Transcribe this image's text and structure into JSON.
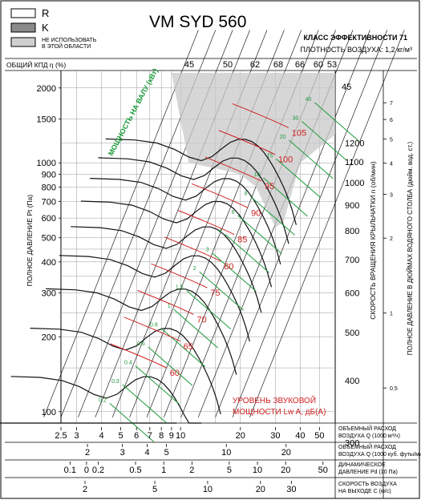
{
  "header": {
    "model": "VM SYD 560",
    "efficiency_class": "КЛАСС ЭФФЕКТИВНОСТИ 71",
    "density": "ПЛОТНОСТЬ ВОЗДУХА: 1,2 кг/м³",
    "overall_efficiency": "ОБЩИЙ КПД η (%)"
  },
  "legend": {
    "items": [
      {
        "swatch": "white",
        "label": "R"
      },
      {
        "swatch": "gray",
        "label": "K"
      },
      {
        "swatch": "lightgray",
        "label": "НЕ ИСПОЛЬЗОВАТЬ"
      },
      {
        "swatch": "none",
        "label": "В ЭТОЙ ОБЛАСТИ"
      }
    ]
  },
  "colors": {
    "green": "#1a9a3a",
    "red": "#d02020",
    "dark": "#111111",
    "shade": "#c8c8c8"
  },
  "chart_data": {
    "type": "line",
    "axes": {
      "left_label": "ПОЛНОЕ ДАВЛЕНИЕ Pt (Па)",
      "left_ticks": [
        "2000",
        "1500",
        "1000",
        "900",
        "800",
        "700",
        "600",
        "500",
        "400",
        "300",
        "200",
        "100"
      ],
      "left_range": [
        100,
        2300
      ],
      "right_speed_label": "СКОРОСТЬ ВРАЩЕНИЯ КРЫЛЬЧАТКИ n (об/мин)",
      "right_speed_ticks": [
        "1200",
        "1100",
        "1000",
        "900",
        "800",
        "700",
        "600",
        "500",
        "400",
        "300"
      ],
      "right_inch_label": "ПОЛНОЕ ДАВЛЕНИЕ В ДЮЙМАХ ВОДЯНОГО СТОЛБА (дюйм. вод. ст.)",
      "right_inch_ticks": [
        "7",
        "6",
        "5",
        "4",
        "3",
        "2",
        "1",
        "0.5"
      ],
      "top_eff_ticks": [
        "45",
        "50",
        "62",
        "68",
        "66",
        "60",
        "53"
      ],
      "right_eff_tick": "45",
      "bottom_axes": [
        {
          "label": "ОБЪЕМНЫЙ РАСХОД ВОЗДУХА Q (1000 м³/ч)",
          "ticks": [
            "2.5",
            "3",
            "4",
            "5",
            "6",
            "7",
            "8",
            "9",
            "10",
            "20",
            "30",
            "40",
            "50"
          ]
        },
        {
          "label": "ОБЪЕМНЫЙ РАСХОД ВОЗДУХА Q (1000 куб. футы/мин)",
          "ticks": [
            "2",
            "3",
            "4",
            "5",
            "10",
            "20"
          ]
        },
        {
          "label": "ДИНАМИЧЕСКОЕ ДАВЛЕНИЕ Pd (10 Па)",
          "ticks": [
            "0.1",
            "0",
            "0.2",
            "0.5",
            "1",
            "2",
            "5",
            "10",
            "20",
            "50"
          ]
        },
        {
          "label": "СКОРОСТЬ ВОЗДУХА НА ВЫХОДЕ C (м/с)",
          "ticks": [
            "2",
            "5",
            "10",
            "20",
            "30"
          ]
        }
      ]
    },
    "power_label": "МОЩНОСТЬ НА ВАЛУ (кВт)",
    "power_lines": [
      "0.2",
      "0.3",
      "0.4",
      "0.6",
      "0.8",
      "1",
      "1.5",
      "2",
      "3",
      "4",
      "6",
      "8",
      "10",
      "15",
      "20",
      "30",
      "40"
    ],
    "sound_label_1": "УРОВЕНЬ ЗВУКОВОЙ",
    "sound_label_2": "МОЩНОСТИ Lw A, дБ(A)",
    "sound_levels": [
      "60",
      "65",
      "70",
      "75",
      "80",
      "85",
      "90",
      "95",
      "100",
      "105"
    ],
    "speeds_rpm": [
      1200,
      1100,
      1000,
      900,
      800,
      700,
      600,
      500,
      400,
      300
    ],
    "q_range": [
      2.5,
      50
    ],
    "scale": "log-log",
    "grid": true
  }
}
